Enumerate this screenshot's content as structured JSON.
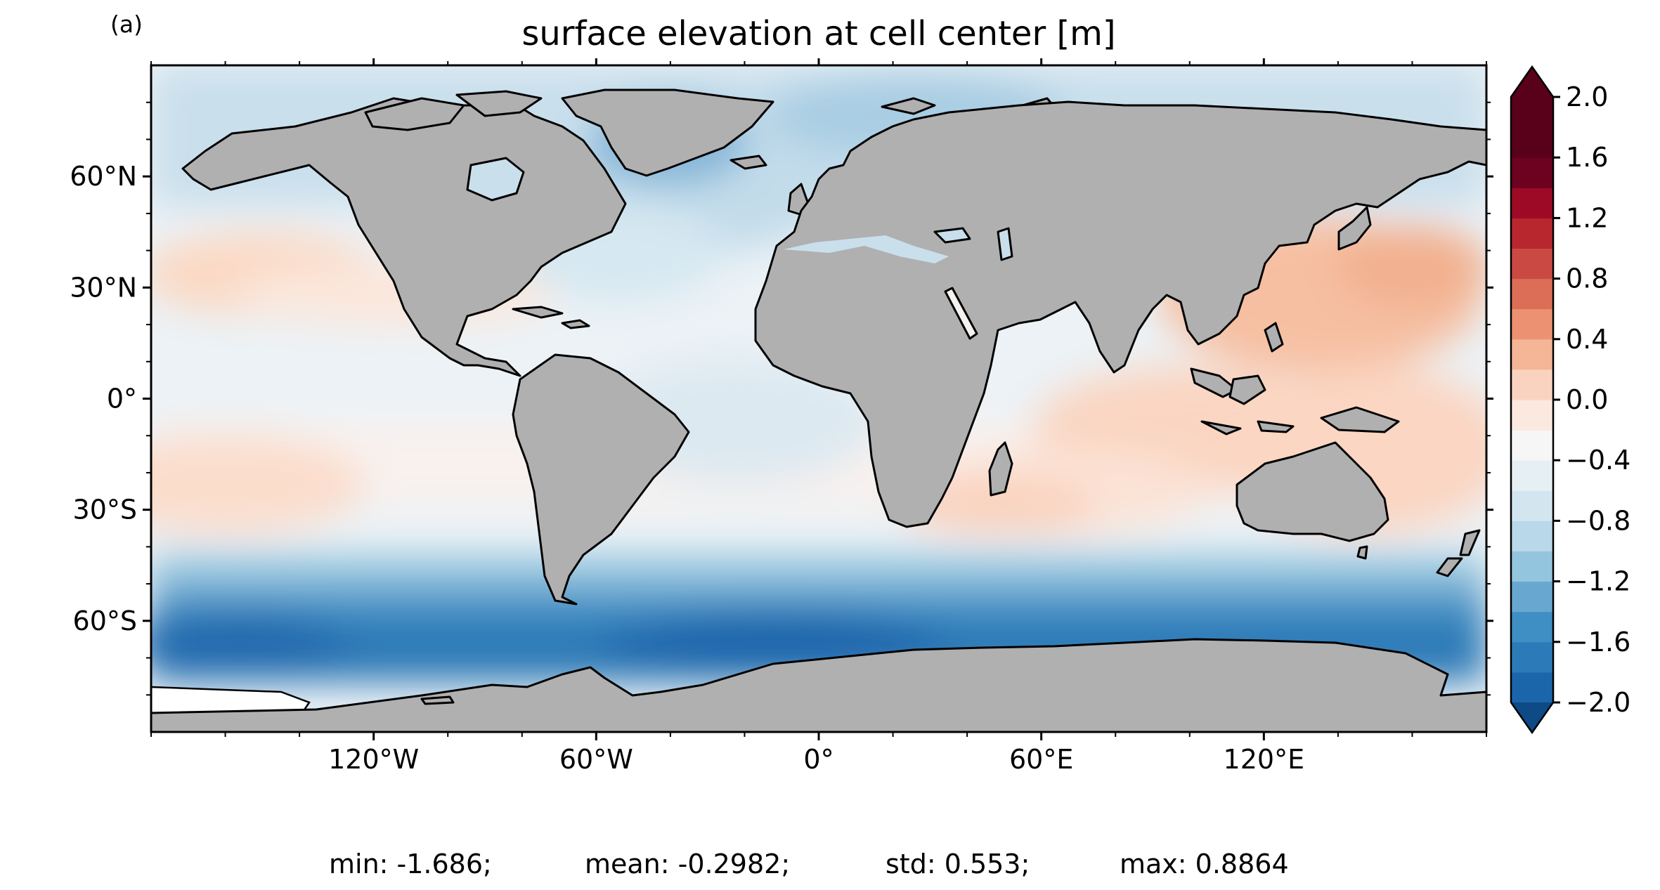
{
  "panel_label": "(a)",
  "title": "surface elevation at cell center [m]",
  "map": {
    "projection": "PlateCarree",
    "lon_range": [
      -180,
      180
    ],
    "lat_range": [
      -90,
      90
    ],
    "land_color": "#b0b0b0",
    "coastline_color": "#000000",
    "x_ticks": [
      {
        "lon": -120,
        "label": "120°W"
      },
      {
        "lon": -60,
        "label": "60°W"
      },
      {
        "lon": 0,
        "label": "0°"
      },
      {
        "lon": 60,
        "label": "60°E"
      },
      {
        "lon": 120,
        "label": "120°E"
      }
    ],
    "y_ticks": [
      {
        "lat": 60,
        "label": "60°N"
      },
      {
        "lat": 30,
        "label": "30°N"
      },
      {
        "lat": 0,
        "label": "0°"
      },
      {
        "lat": -30,
        "label": "30°S"
      },
      {
        "lat": -60,
        "label": "60°S"
      }
    ]
  },
  "colorbar": {
    "cmap": "RdBu_r",
    "vmin": -2.0,
    "vmax": 2.0,
    "step": 0.2,
    "extend": "both",
    "colors": [
      "#0d4a86",
      "#1b65ab",
      "#2c7bb8",
      "#3f8ec4",
      "#68a8d0",
      "#94c5de",
      "#b9d8e9",
      "#d3e6f0",
      "#e6eff4",
      "#f6f6f6",
      "#fbe9df",
      "#fad3c0",
      "#f5b597",
      "#ec9272",
      "#dc6e57",
      "#ca4a43",
      "#b8272e",
      "#9d0a26",
      "#6d0120",
      "#59011a"
    ],
    "ticks": [
      {
        "value": 2.0,
        "label": "2.0"
      },
      {
        "value": 1.6,
        "label": "1.6"
      },
      {
        "value": 1.2,
        "label": "1.2"
      },
      {
        "value": 0.8,
        "label": "0.8"
      },
      {
        "value": 0.4,
        "label": "0.4"
      },
      {
        "value": 0.0,
        "label": "0.0"
      },
      {
        "value": -0.4,
        "label": "−0.4"
      },
      {
        "value": -0.8,
        "label": "−0.8"
      },
      {
        "value": -1.2,
        "label": "−1.2"
      },
      {
        "value": -1.6,
        "label": "−1.6"
      },
      {
        "value": -2.0,
        "label": "−2.0"
      }
    ]
  },
  "stats": {
    "min": "min: -1.686;",
    "mean": "mean: -0.2982;",
    "std": "std: 0.553;",
    "max": "max: 0.8864"
  }
}
